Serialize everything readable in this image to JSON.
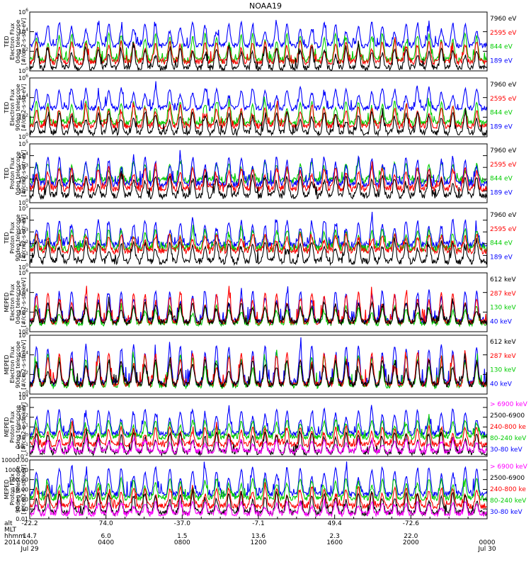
{
  "chart_data": {
    "type": "line",
    "title": "NOAA19",
    "time_axis": {
      "rows": [
        {
          "label": "alt",
          "values": [
            "",
            "",
            "",
            "",
            "",
            "",
            ""
          ]
        },
        {
          "label": "MLT",
          "values": [
            "14.7",
            "6.0",
            "1.5",
            "13.6",
            "2.3",
            "22.0",
            ""
          ]
        },
        {
          "label": "hhmm",
          "values": [
            "0000",
            "0400",
            "0800",
            "1200",
            "1600",
            "2000",
            "0000"
          ]
        },
        {
          "label": "2014",
          "values": [
            "Jul 29",
            "",
            "",
            "",
            "",
            "",
            "Jul 30"
          ]
        }
      ],
      "lat_values": [
        "-22.2",
        "74.0",
        "-37.0",
        "-7.1",
        "49.4",
        "-72.6",
        ""
      ],
      "hours_range": [
        0,
        24
      ]
    },
    "panels": [
      {
        "instrument": "TED",
        "ylabel": [
          "TED",
          "Electron Flux",
          "0deg telescope",
          "[#/cm2-s-str-eV]"
        ],
        "ylim_exp": [
          0,
          6
        ],
        "tick_labels": [
          "10^0",
          "10^2",
          "10^4",
          "10^6"
        ],
        "legend": [
          {
            "label": "7960 eV",
            "color": "#000000"
          },
          {
            "label": "2595 eV",
            "color": "#ff0000"
          },
          {
            "label": "844 eV",
            "color": "#00cc00"
          },
          {
            "label": "189 eV",
            "color": "#0000ff"
          }
        ],
        "series": [
          {
            "color": "#0000ff",
            "base": 2.6,
            "peak": 4.9
          },
          {
            "color": "#00cc00",
            "base": 1.1,
            "peak": 3.8
          },
          {
            "color": "#ff0000",
            "base": 0.9,
            "peak": 3.0
          },
          {
            "color": "#000000",
            "base": 0.3,
            "peak": 2.4
          }
        ]
      },
      {
        "instrument": "TED",
        "ylabel": [
          "TED",
          "Electron Flux",
          "90deg telescope",
          "[#/cm2-s-str-eV]"
        ],
        "ylim_exp": [
          0,
          6
        ],
        "tick_labels": [
          "10^0",
          "10^2",
          "10^4",
          "10^6"
        ],
        "legend": [
          {
            "label": "7960 eV",
            "color": "#000000"
          },
          {
            "label": "2595 eV",
            "color": "#ff0000"
          },
          {
            "label": "844 eV",
            "color": "#00cc00"
          },
          {
            "label": "189 eV",
            "color": "#0000ff"
          }
        ],
        "series": [
          {
            "color": "#0000ff",
            "base": 2.9,
            "peak": 5.0
          },
          {
            "color": "#00cc00",
            "base": 1.4,
            "peak": 3.6
          },
          {
            "color": "#ff0000",
            "base": 1.1,
            "peak": 3.1
          },
          {
            "color": "#000000",
            "base": 0.4,
            "peak": 2.5
          }
        ]
      },
      {
        "instrument": "TED",
        "ylabel": [
          "TED",
          "Proton Flux",
          "0deg telescope",
          "[#/cm2-s-str-eV]"
        ],
        "ylim_exp": [
          0,
          5
        ],
        "tick_labels": [
          "10^0",
          "10^1",
          "10^2",
          "10^3",
          "10^4",
          "10^5"
        ],
        "legend": [
          {
            "label": "7960 eV",
            "color": "#000000"
          },
          {
            "label": "2595 eV",
            "color": "#ff0000"
          },
          {
            "label": "844 eV",
            "color": "#00cc00"
          },
          {
            "label": "189 eV",
            "color": "#0000ff"
          }
        ],
        "series": [
          {
            "color": "#00cc00",
            "base": 1.9,
            "peak": 3.4
          },
          {
            "color": "#0000ff",
            "base": 1.6,
            "peak": 3.9
          },
          {
            "color": "#ff0000",
            "base": 1.2,
            "peak": 3.0
          },
          {
            "color": "#000000",
            "base": 0.6,
            "peak": 2.3
          }
        ]
      },
      {
        "instrument": "TED",
        "ylabel": [
          "TED",
          "Proton Flux",
          "90deg telescope",
          "[#/cm2-s-str-eV]"
        ],
        "ylim_exp": [
          0,
          5
        ],
        "tick_labels": [
          "10^0",
          "10^1",
          "10^2",
          "10^3",
          "10^4",
          "10^5"
        ],
        "legend": [
          {
            "label": "7960 eV",
            "color": "#000000"
          },
          {
            "label": "2595 eV",
            "color": "#ff0000"
          },
          {
            "label": "844 eV",
            "color": "#00cc00"
          },
          {
            "label": "189 eV",
            "color": "#0000ff"
          }
        ],
        "series": [
          {
            "color": "#0000ff",
            "base": 1.9,
            "peak": 4.0
          },
          {
            "color": "#00cc00",
            "base": 1.6,
            "peak": 3.2
          },
          {
            "color": "#ff0000",
            "base": 1.4,
            "peak": 2.8
          },
          {
            "color": "#000000",
            "base": 0.5,
            "peak": 2.2
          }
        ]
      },
      {
        "instrument": "MEPED",
        "ylabel": [
          "MEPED",
          "Electron Flux",
          "0deg telescope",
          "[#/cm2-s-str-keV]"
        ],
        "ylim_exp": [
          0,
          6
        ],
        "tick_labels": [
          "10^0",
          "10^2",
          "10^4",
          "10^6"
        ],
        "legend": [
          {
            "label": "612 keV",
            "color": "#000000"
          },
          {
            "label": "287 keV",
            "color": "#ff0000"
          },
          {
            "label": "130 keV",
            "color": "#00cc00"
          },
          {
            "label": "40 keV",
            "color": "#0000ff"
          }
        ],
        "series": [
          {
            "color": "#0000ff",
            "base": 1.1,
            "peak": 4.2
          },
          {
            "color": "#00cc00",
            "base": 0.85,
            "peak": 2.6
          },
          {
            "color": "#ff0000",
            "base": 1.0,
            "peak": 4.0
          },
          {
            "color": "#000000",
            "base": 1.0,
            "peak": 3.0
          }
        ]
      },
      {
        "instrument": "MEPED",
        "ylabel": [
          "MEPED",
          "Electron Flux",
          "90deg telescope",
          "[#/cm2-s-str-keV]"
        ],
        "ylim_exp": [
          0,
          6
        ],
        "tick_labels": [
          "10^0",
          "10^2",
          "10^4",
          "10^6"
        ],
        "legend": [
          {
            "label": "612 keV",
            "color": "#000000"
          },
          {
            "label": "287 keV",
            "color": "#ff0000"
          },
          {
            "label": "130 keV",
            "color": "#00cc00"
          },
          {
            "label": "40 keV",
            "color": "#0000ff"
          }
        ],
        "series": [
          {
            "color": "#0000ff",
            "base": 1.1,
            "peak": 5.0
          },
          {
            "color": "#00cc00",
            "base": 0.85,
            "peak": 4.0
          },
          {
            "color": "#ff0000",
            "base": 1.0,
            "peak": 4.2
          },
          {
            "color": "#000000",
            "base": 1.0,
            "peak": 3.5
          }
        ]
      },
      {
        "instrument": "MEPED",
        "ylabel": [
          "MEPED",
          "Proton Flux",
          "0deg telescope",
          "[#/cm2-s-str-keV]"
        ],
        "ylim_exp": [
          -2,
          4
        ],
        "tick_labels": [
          "10^-2",
          "10^-1",
          "10^0",
          "10^1",
          "10^2",
          "10^3",
          "10^4"
        ],
        "legend": [
          {
            "label": "> 6900 keV",
            "color": "#ff00ff"
          },
          {
            "label": "2500-6900",
            "color": "#000000"
          },
          {
            "label": "240-800 ke",
            "color": "#ff0000"
          },
          {
            "label": "80-240 keV",
            "color": "#00cc00"
          },
          {
            "label": "30-80 keV",
            "color": "#0000ff"
          }
        ],
        "series": [
          {
            "color": "#0000ff",
            "base": 0.3,
            "peak": 2.8
          },
          {
            "color": "#00cc00",
            "base": 0.0,
            "peak": 1.7
          },
          {
            "color": "#ff0000",
            "base": -0.8,
            "peak": 1.0
          },
          {
            "color": "#000000",
            "base": -1.6,
            "peak": 0.4
          },
          {
            "color": "#ff00ff",
            "base": -1.5,
            "peak": -0.3
          }
        ]
      },
      {
        "instrument": "MEPED",
        "ylabel": [
          "MEPED",
          "Proton Flux",
          "90deg telescope",
          "[#/cm2-s-str-keV]"
        ],
        "ylim_exp": [
          -2,
          4
        ],
        "tick_labels": [
          "0.01",
          "0.10",
          "1.00",
          "10.00",
          "100.00",
          "1000.00",
          "10000.00"
        ],
        "legend": [
          {
            "label": "> 6900 keV",
            "color": "#ff00ff"
          },
          {
            "label": "2500-6900",
            "color": "#000000"
          },
          {
            "label": "240-800 ke",
            "color": "#ff0000"
          },
          {
            "label": "80-240 keV",
            "color": "#00cc00"
          },
          {
            "label": "30-80 keV",
            "color": "#0000ff"
          }
        ],
        "series": [
          {
            "color": "#0000ff",
            "base": 0.5,
            "peak": 3.3
          },
          {
            "color": "#00cc00",
            "base": 0.1,
            "peak": 2.1
          },
          {
            "color": "#ff0000",
            "base": -0.7,
            "peak": 1.2
          },
          {
            "color": "#000000",
            "base": -1.4,
            "peak": 0.6
          },
          {
            "color": "#ff00ff",
            "base": -1.5,
            "peak": -0.3
          }
        ]
      }
    ],
    "pass_hours": [
      0.35,
      0.95,
      1.55,
      2.2,
      2.95,
      3.6,
      4.15,
      4.8,
      5.45,
      6.05,
      6.6,
      7.35,
      7.9,
      8.55,
      9.2,
      9.8,
      10.45,
      11.1,
      11.7,
      12.35,
      12.95,
      13.5,
      14.2,
      14.8,
      15.45,
      16.05,
      16.6,
      17.25,
      17.95,
      18.5,
      19.15,
      19.75,
      20.35,
      20.95,
      21.6,
      22.2,
      22.85,
      23.45
    ]
  }
}
